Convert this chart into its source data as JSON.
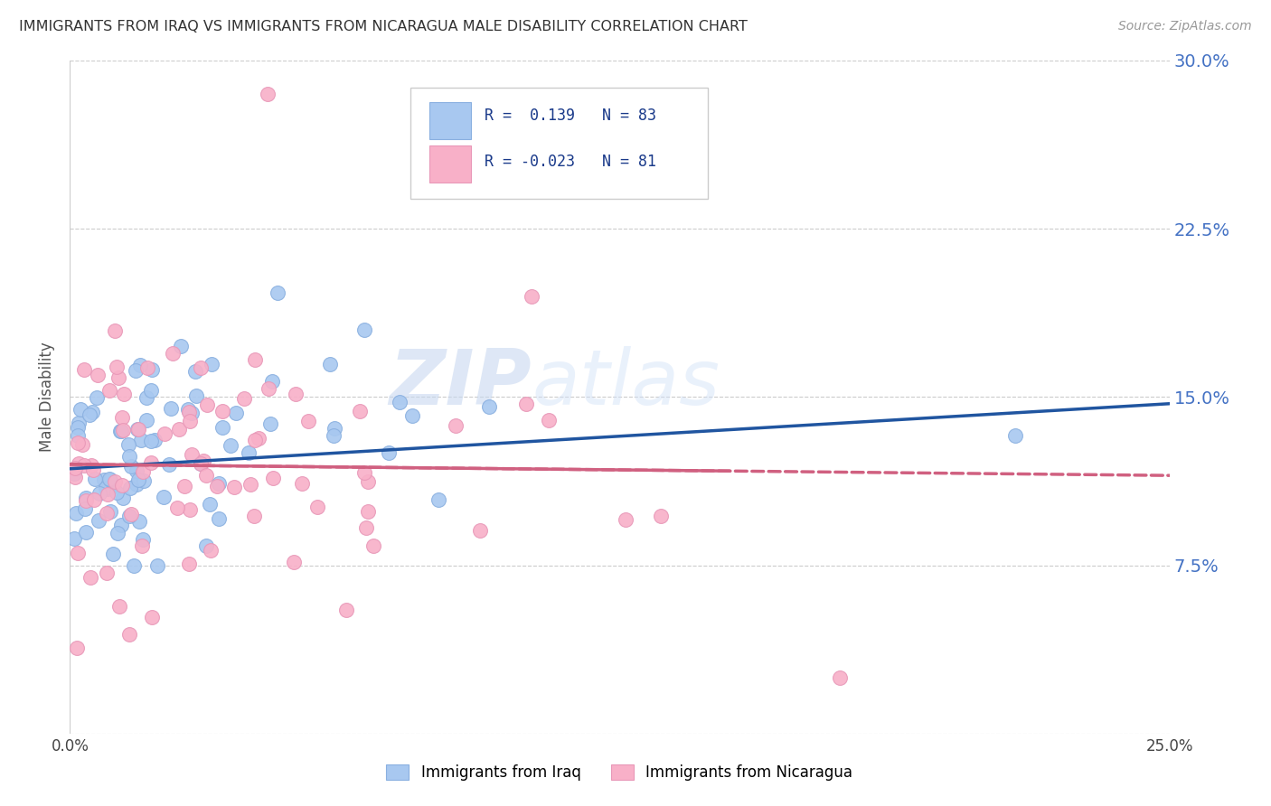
{
  "title": "IMMIGRANTS FROM IRAQ VS IMMIGRANTS FROM NICARAGUA MALE DISABILITY CORRELATION CHART",
  "source": "Source: ZipAtlas.com",
  "ylabel": "Male Disability",
  "xlim": [
    0.0,
    0.25
  ],
  "ylim": [
    0.0,
    0.3
  ],
  "ytick_positions": [
    0.0,
    0.075,
    0.15,
    0.225,
    0.3
  ],
  "ytick_labels": [
    "",
    "7.5%",
    "15.0%",
    "22.5%",
    "30.0%"
  ],
  "iraq_color": "#a8c8f0",
  "iraq_edge_color": "#8ab0e0",
  "iraq_line_color": "#2055a0",
  "nicaragua_color": "#f8b0c8",
  "nicaragua_edge_color": "#e898b8",
  "nicaragua_line_color": "#d06080",
  "iraq_R": 0.139,
  "iraq_N": 83,
  "nicaragua_R": -0.023,
  "nicaragua_N": 81,
  "watermark_zip": "ZIP",
  "watermark_atlas": "atlas",
  "background_color": "#ffffff",
  "grid_color": "#cccccc",
  "title_color": "#333333",
  "axis_label_color": "#555555",
  "right_tick_color": "#4472c4",
  "legend_color": "#1a3a8a"
}
